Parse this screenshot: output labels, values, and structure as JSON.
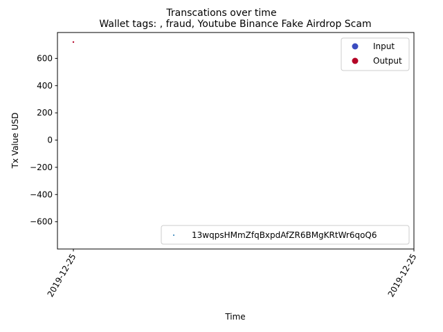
{
  "chart_data": {
    "type": "scatter",
    "suptitle": "Transcations over time",
    "title": "Wallet tags: , fraud, Youtube Binance Fake Airdrop Scam",
    "xlabel": "Time",
    "ylabel": "Tx Value USD",
    "x_tick_labels": [
      "2019-12-25",
      "2019-12-25"
    ],
    "y_ticks": [
      600,
      400,
      200,
      0,
      -200,
      -400,
      -600
    ],
    "y_tick_labels": [
      "600",
      "400",
      "200",
      "0",
      "−200",
      "−400",
      "−600"
    ],
    "ylim": [
      -800,
      790
    ],
    "grid": false,
    "legends": [
      {
        "placement": "upper-right",
        "entries": [
          {
            "label": "Input",
            "color": "#3b4cc0"
          },
          {
            "label": "Output",
            "color": "#b40426"
          }
        ]
      },
      {
        "placement": "lower-right",
        "entries": [
          {
            "label": "13wqpsHMmZfqBxpdAfZR6BMgKRtWr6qoQ6",
            "color": "#1f77b4"
          }
        ]
      }
    ],
    "series": [
      {
        "name": "Output",
        "color": "#b40426",
        "points": [
          {
            "x": "2019-12-25",
            "y": 720
          }
        ]
      }
    ]
  }
}
